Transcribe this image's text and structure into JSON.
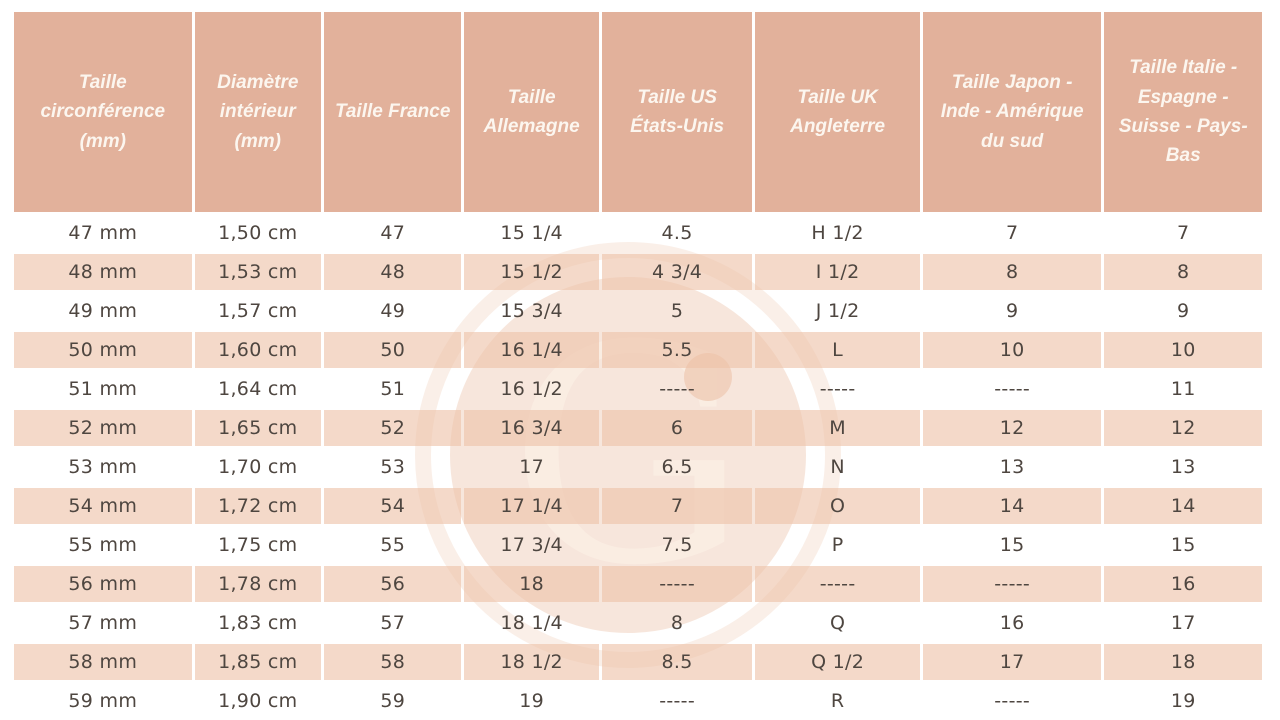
{
  "colors": {
    "header_bg": "#e2b19b",
    "header_text": "#fcf6ef",
    "row_alt_bg": "#f6dccb",
    "row_bg": "#ffffff",
    "body_text": "#4e4640",
    "watermark_tint": "#f3d8c6"
  },
  "watermark": {
    "letter": "G"
  },
  "table": {
    "columns": [
      "Taille circonférence (mm)",
      "Diamètre intérieur (mm)",
      "Taille France",
      "Taille Allemagne",
      "Taille US États-Unis",
      "Taille UK Angleterre",
      "Taille Japon - Inde - Amérique du sud",
      "Taille Italie - Espagne - Suisse - Pays-Bas"
    ],
    "rows": [
      [
        "47 mm",
        "1,50 cm",
        "47",
        "15 1/4",
        "4.5",
        "H 1/2",
        "7",
        "7"
      ],
      [
        "48 mm",
        "1,53 cm",
        "48",
        "15 1/2",
        "4 3/4",
        "I 1/2",
        "8",
        "8"
      ],
      [
        "49 mm",
        "1,57 cm",
        "49",
        "15 3/4",
        "5",
        "J 1/2",
        "9",
        "9"
      ],
      [
        "50 mm",
        "1,60 cm",
        "50",
        "16 1/4",
        "5.5",
        "L",
        "10",
        "10"
      ],
      [
        "51 mm",
        "1,64 cm",
        "51",
        "16 1/2",
        "-----",
        "-----",
        "-----",
        "11"
      ],
      [
        "52 mm",
        "1,65 cm",
        "52",
        "16 3/4",
        "6",
        "M",
        "12",
        "12"
      ],
      [
        "53 mm",
        "1,70 cm",
        "53",
        "17",
        "6.5",
        "N",
        "13",
        "13"
      ],
      [
        "54 mm",
        "1,72 cm",
        "54",
        "17 1/4",
        "7",
        "O",
        "14",
        "14"
      ],
      [
        "55 mm",
        "1,75 cm",
        "55",
        "17 3/4",
        "7.5",
        "P",
        "15",
        "15"
      ],
      [
        "56 mm",
        "1,78 cm",
        "56",
        "18",
        "-----",
        "-----",
        "-----",
        "16"
      ],
      [
        "57 mm",
        "1,83 cm",
        "57",
        "18 1/4",
        "8",
        "Q",
        "16",
        "17"
      ],
      [
        "58 mm",
        "1,85 cm",
        "58",
        "18 1/2",
        "8.5",
        "Q 1/2",
        "17",
        "18"
      ],
      [
        "59 mm",
        "1,90 cm",
        "59",
        "19",
        "-----",
        "R",
        "-----",
        "19"
      ]
    ]
  }
}
